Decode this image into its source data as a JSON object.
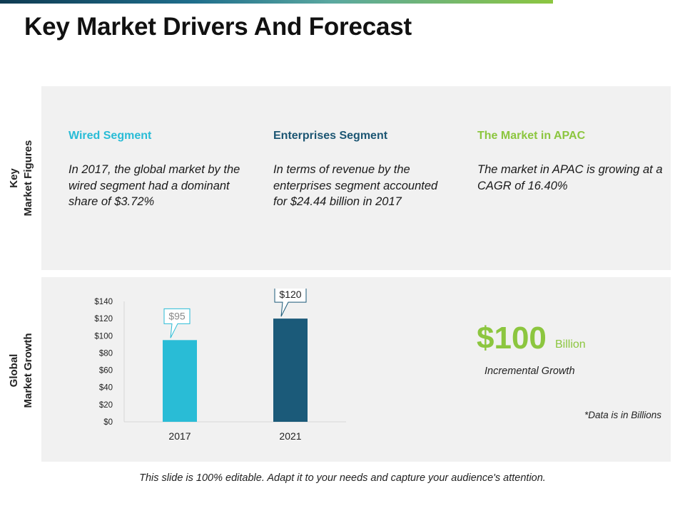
{
  "title": "Key Market Drivers And Forecast",
  "side_labels": {
    "top": [
      "Key",
      "Market Figures"
    ],
    "bottom": [
      "Global",
      "Market Growth"
    ]
  },
  "figures": [
    {
      "heading": "Wired Segment",
      "text": "In 2017, the global market by the wired segment had a dominant share of $3.72%",
      "color": "#29bcd6"
    },
    {
      "heading": "Enterprises Segment",
      "text": "In terms of revenue by the enterprises segment accounted for $24.44 billion in 2017",
      "color": "#1c5673"
    },
    {
      "heading": "The Market in APAC",
      "text": "The market in APAC is growing at a CAGR of 16.40%",
      "color": "#8cc63f"
    }
  ],
  "chart_data": {
    "type": "bar",
    "categories": [
      "2017",
      "2021"
    ],
    "values": [
      95,
      120
    ],
    "data_labels": [
      "$95",
      "$120"
    ],
    "colors": [
      "#29bcd6",
      "#1b5a79"
    ],
    "ylim": [
      0,
      140
    ],
    "yticks": [
      0,
      20,
      40,
      60,
      80,
      100,
      120,
      140
    ],
    "ytick_labels": [
      "$0",
      "$20",
      "$40",
      "$60",
      "$80",
      "$100",
      "$120",
      "$140"
    ],
    "title": "",
    "xlabel": "",
    "ylabel": "",
    "grid": false
  },
  "highlight": {
    "value": "$100",
    "unit": "Billion",
    "caption": "Incremental Growth",
    "color": "#8cc63f"
  },
  "note": "*Data is in Billions",
  "footer": "This slide is 100% editable. Adapt it to your needs and capture your audience's attention."
}
